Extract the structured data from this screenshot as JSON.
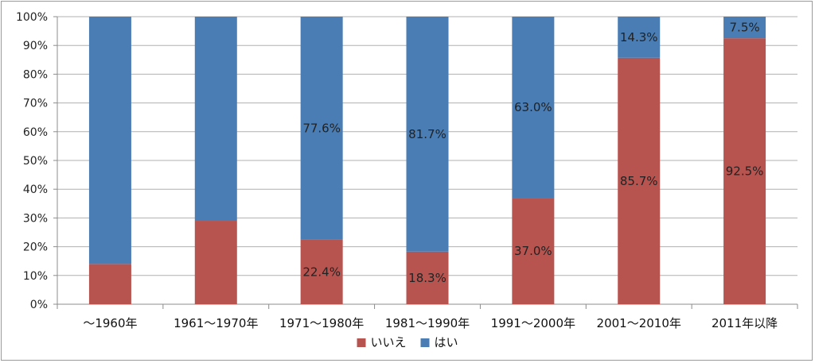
{
  "chart_data": {
    "type": "bar",
    "stacked": true,
    "percent": true,
    "categories": [
      "～1960年",
      "1961～1970年",
      "1971～1980年",
      "1981～1990年",
      "1991～2000年",
      "2001～2010年",
      "2011年以降"
    ],
    "series": [
      {
        "name": "いいえ",
        "color": "#B85450",
        "values": [
          14,
          29,
          22.4,
          18.3,
          37.0,
          85.7,
          92.5
        ],
        "labels": [
          "",
          "",
          "22.4%",
          "18.3%",
          "37.0%",
          "85.7%",
          "92.5%"
        ]
      },
      {
        "name": "はい",
        "color": "#4A7DB4",
        "values": [
          86,
          71,
          77.6,
          81.7,
          63.0,
          14.3,
          7.5
        ],
        "labels": [
          "",
          "",
          "77.6%",
          "81.7%",
          "63.0%",
          "14.3%",
          "7.5%"
        ]
      }
    ],
    "y_ticks": [
      "0%",
      "10%",
      "20%",
      "30%",
      "40%",
      "50%",
      "60%",
      "70%",
      "80%",
      "90%",
      "100%"
    ],
    "ylim": [
      0,
      100
    ],
    "grid": true,
    "legend_position": "bottom"
  }
}
